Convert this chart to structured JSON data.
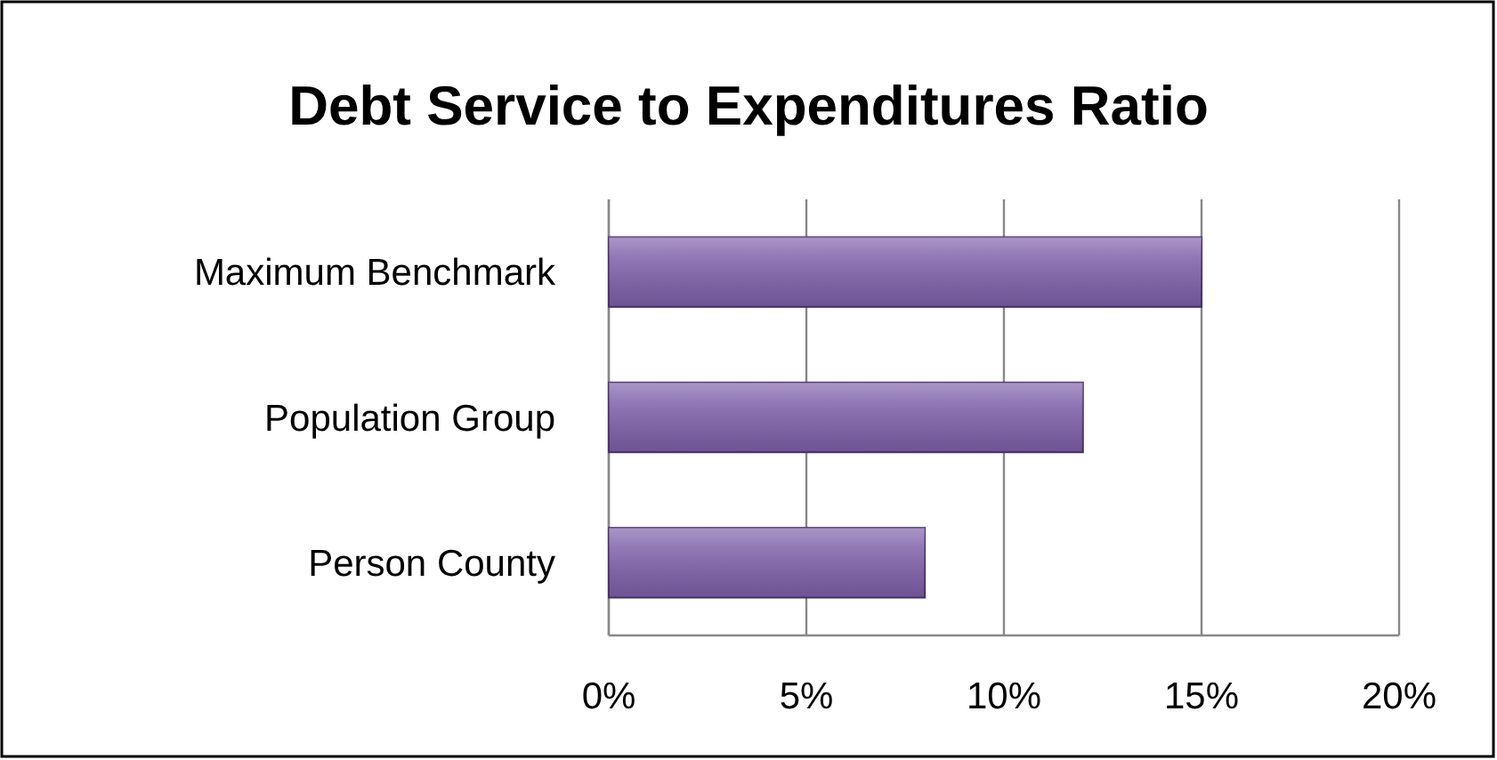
{
  "chart_data": {
    "type": "bar",
    "orientation": "horizontal",
    "title": "Debt Service to Expenditures Ratio",
    "categories": [
      "Maximum Benchmark",
      "Population Group",
      "Person County"
    ],
    "values": [
      15,
      12,
      8
    ],
    "color": "#7d5fa8",
    "xlim": [
      0,
      20
    ],
    "xticks": [
      {
        "value": 0,
        "label": "0%"
      },
      {
        "value": 5,
        "label": "5%"
      },
      {
        "value": 10,
        "label": "10%"
      },
      {
        "value": 15,
        "label": "15%"
      },
      {
        "value": 20,
        "label": "20%"
      }
    ],
    "grid": "x"
  }
}
